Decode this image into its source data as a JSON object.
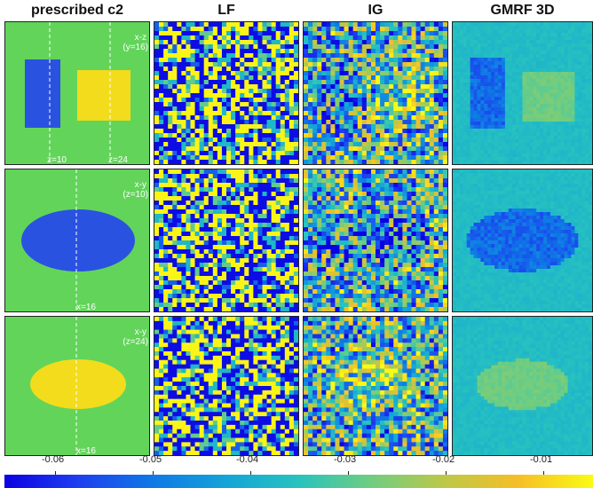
{
  "columns": [
    {
      "key": "prescribed",
      "title": "prescribed c2"
    },
    {
      "key": "lf",
      "title": "LF"
    },
    {
      "key": "ig",
      "title": "IG"
    },
    {
      "key": "gmrf",
      "title": "GMRF 3D"
    }
  ],
  "rows": [
    {
      "plane_label": "x-z",
      "slice_label": "(y=16)",
      "line_labels": [
        "z=10",
        "z=24"
      ]
    },
    {
      "plane_label": "x-y",
      "slice_label": "(z=10)",
      "line_labels": [
        "x=16"
      ]
    },
    {
      "plane_label": "x-y",
      "slice_label": "(z=24)",
      "line_labels": [
        "x=16"
      ]
    }
  ],
  "colorbar": {
    "ticks": [
      "-0.06",
      "-0.05",
      "-0.04",
      "-0.03",
      "-0.02",
      "-0.01"
    ],
    "tick_values": [
      -0.06,
      -0.05,
      -0.04,
      -0.03,
      -0.02,
      -0.01
    ],
    "range": [
      -0.07,
      -0.005
    ],
    "colormap": "parula"
  },
  "colors": {
    "background_c2": "#62d45a",
    "low_region": "#2a52e0",
    "high_region": "#f2dc1c"
  }
}
